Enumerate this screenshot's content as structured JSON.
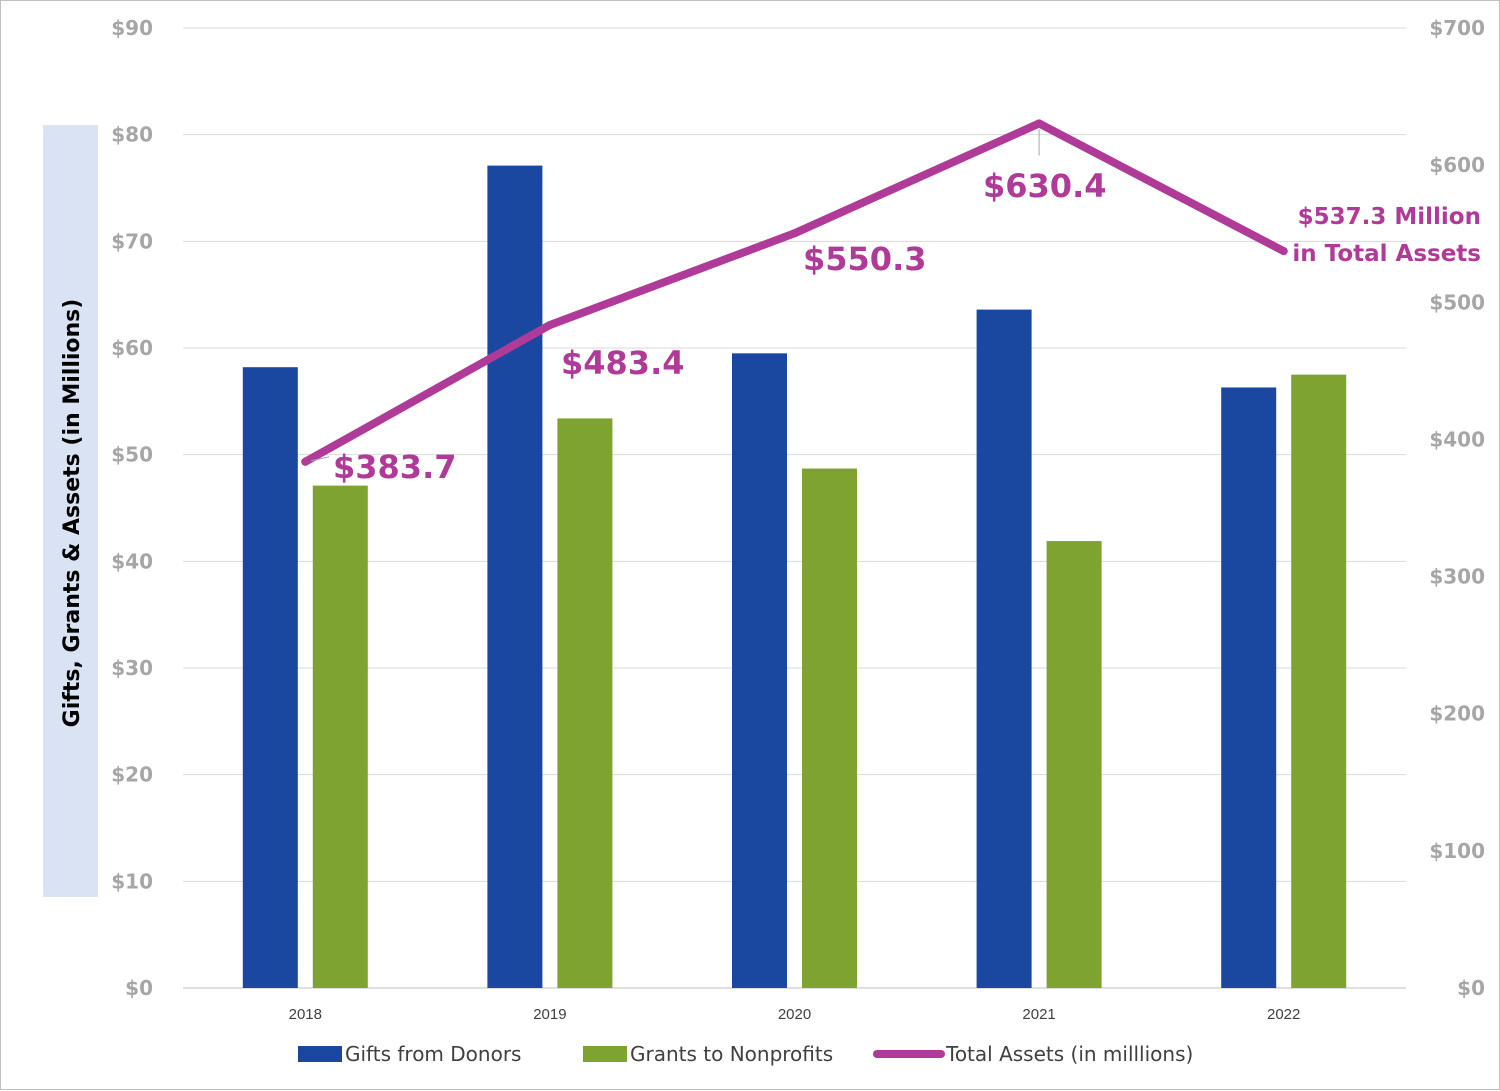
{
  "chart_data": {
    "type": "bar",
    "categories": [
      "2018",
      "2019",
      "2020",
      "2021",
      "2022"
    ],
    "series": [
      {
        "name": "Gifts from Donors",
        "type": "bar",
        "axis": "left",
        "color": "#1a47a0",
        "values": [
          58.2,
          77.1,
          59.5,
          63.6,
          56.3
        ]
      },
      {
        "name": "Grants to Nonprofits",
        "type": "bar",
        "axis": "left",
        "color": "#7ea331",
        "values": [
          47.1,
          53.4,
          48.7,
          41.9,
          57.5
        ]
      },
      {
        "name": "Total Assets (in milllions)",
        "type": "line",
        "axis": "right",
        "color": "#b03a97",
        "values": [
          383.7,
          483.4,
          550.3,
          630.4,
          537.3
        ]
      }
    ],
    "ylabel": "Gifts, Grants & Assets (in Millions)",
    "ylim_left": [
      0,
      90
    ],
    "yticks_left": [
      "$0",
      "$10",
      "$20",
      "$30",
      "$40",
      "$50",
      "$60",
      "$70",
      "$80",
      "$90"
    ],
    "ylim_right": [
      0,
      700
    ],
    "yticks_right": [
      "$0",
      "$100",
      "$200",
      "$300",
      "$400",
      "$500",
      "$600",
      "$700"
    ],
    "annotations": [
      "$383.7",
      "$483.4",
      "$550.3",
      "$630.4",
      "$537.3 Million",
      "in Total Assets"
    ],
    "grid": true,
    "legend_position": "bottom"
  }
}
